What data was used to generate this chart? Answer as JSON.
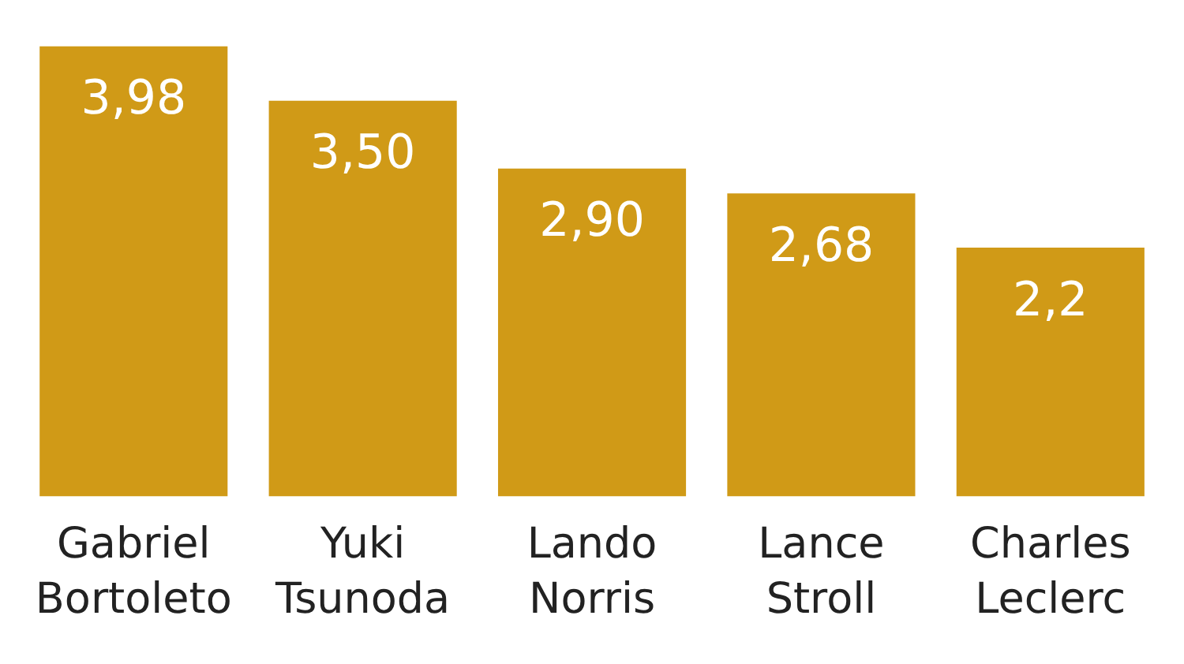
{
  "chart_data": {
    "type": "bar",
    "categories": [
      "Gabriel Bortoleto",
      "Yuki Tsunoda",
      "Lando Norris",
      "Lance Stroll",
      "Charles Leclerc"
    ],
    "values": [
      3.98,
      3.5,
      2.9,
      2.68,
      2.2
    ],
    "value_labels": [
      "3,98",
      "3,50",
      "2,90",
      "2,68",
      "2,2"
    ],
    "color": "#d09a17",
    "grid": false,
    "legend": false
  }
}
